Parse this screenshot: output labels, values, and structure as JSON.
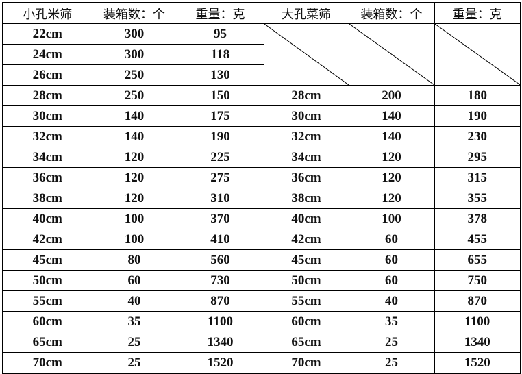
{
  "headers": [
    "小孔米筛",
    "装箱数：个",
    "重量：克",
    "大孔菜筛",
    "装箱数：个",
    "重量：克"
  ],
  "small_only_rows": [
    {
      "size": "22cm",
      "qty": "300",
      "weight": "95"
    },
    {
      "size": "24cm",
      "qty": "300",
      "weight": "118"
    },
    {
      "size": "26cm",
      "qty": "250",
      "weight": "130"
    }
  ],
  "rows": [
    {
      "s_size": "28cm",
      "s_qty": "250",
      "s_weight": "150",
      "l_size": "28cm",
      "l_qty": "200",
      "l_weight": "180"
    },
    {
      "s_size": "30cm",
      "s_qty": "140",
      "s_weight": "175",
      "l_size": "30cm",
      "l_qty": "140",
      "l_weight": "190"
    },
    {
      "s_size": "32cm",
      "s_qty": "140",
      "s_weight": "190",
      "l_size": "32cm",
      "l_qty": "140",
      "l_weight": "230"
    },
    {
      "s_size": "34cm",
      "s_qty": "120",
      "s_weight": "225",
      "l_size": "34cm",
      "l_qty": "120",
      "l_weight": "295"
    },
    {
      "s_size": "36cm",
      "s_qty": "120",
      "s_weight": "275",
      "l_size": "36cm",
      "l_qty": "120",
      "l_weight": "315"
    },
    {
      "s_size": "38cm",
      "s_qty": "120",
      "s_weight": "310",
      "l_size": "38cm",
      "l_qty": "120",
      "l_weight": "355"
    },
    {
      "s_size": "40cm",
      "s_qty": "100",
      "s_weight": "370",
      "l_size": "40cm",
      "l_qty": "100",
      "l_weight": "378"
    },
    {
      "s_size": "42cm",
      "s_qty": "100",
      "s_weight": "410",
      "l_size": "42cm",
      "l_qty": "60",
      "l_weight": "455"
    },
    {
      "s_size": "45cm",
      "s_qty": "80",
      "s_weight": "560",
      "l_size": "45cm",
      "l_qty": "60",
      "l_weight": "655"
    },
    {
      "s_size": "50cm",
      "s_qty": "60",
      "s_weight": "730",
      "l_size": "50cm",
      "l_qty": "60",
      "l_weight": "750"
    },
    {
      "s_size": "55cm",
      "s_qty": "40",
      "s_weight": "870",
      "l_size": "55cm",
      "l_qty": "40",
      "l_weight": "870"
    },
    {
      "s_size": "60cm",
      "s_qty": "35",
      "s_weight": "1100",
      "l_size": "60cm",
      "l_qty": "35",
      "l_weight": "1100"
    },
    {
      "s_size": "65cm",
      "s_qty": "25",
      "s_weight": "1340",
      "l_size": "65cm",
      "l_qty": "25",
      "l_weight": "1340"
    },
    {
      "s_size": "70cm",
      "s_qty": "25",
      "s_weight": "1520",
      "l_size": "70cm",
      "l_qty": "25",
      "l_weight": "1520"
    }
  ]
}
